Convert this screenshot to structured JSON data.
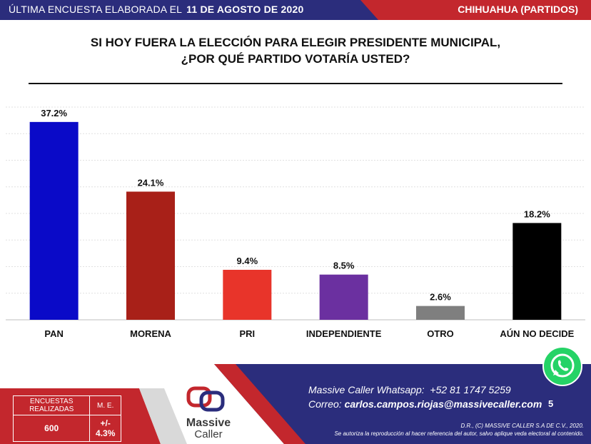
{
  "header": {
    "survey_prefix": "ÚLTIMA ENCUESTA ELABORADA EL",
    "survey_date": "11 DE AGOSTO DE 2020",
    "region": "CHIHUAHUA (PARTIDOS)"
  },
  "chart_data": {
    "type": "bar",
    "title_line1": "SI HOY FUERA LA ELECCIÓN PARA ELEGIR PRESIDENTE MUNICIPAL,",
    "title_line2": "¿POR QUÉ PARTIDO VOTARÍA USTED?",
    "categories": [
      "PAN",
      "MORENA",
      "PRI",
      "INDEPENDIENTE",
      "OTRO",
      "AÚN NO DECIDE"
    ],
    "values": [
      37.2,
      24.1,
      9.4,
      8.5,
      2.6,
      18.2
    ],
    "value_labels": [
      "37.2%",
      "24.1%",
      "9.4%",
      "8.5%",
      "2.6%",
      "18.2%"
    ],
    "colors": [
      "#0a0ac8",
      "#a82018",
      "#e8342a",
      "#6b30a0",
      "#7f7f7f",
      "#000000"
    ],
    "ylim": [
      0,
      40
    ],
    "grid": true,
    "xlabel": "",
    "ylabel": ""
  },
  "footer": {
    "stats_header_1": "ENCUESTAS REALIZADAS",
    "stats_header_2": "M. E.",
    "stats_value_1": "600",
    "stats_value_2": "+/- 4.3%",
    "logo_word_1": "Massive",
    "logo_word_2": "Caller",
    "whatsapp_label": "Massive Caller Whatsapp:",
    "whatsapp_number": "+52 81 1747 5259",
    "email_label": "Correo:",
    "email": "carlos.campos.riojas@massivecaller.com",
    "page_number": "5",
    "legal_1": "D.R., (C) MASSIVE CALLER S.A DE C.V., 2020.",
    "legal_2": "Se autoriza la reproducción al hacer referencia del autor, salvo aplique veda electoral al contenido."
  },
  "colors": {
    "navy": "#2b2d7c",
    "red": "#c3272d",
    "whatsapp_green": "#25d366"
  }
}
